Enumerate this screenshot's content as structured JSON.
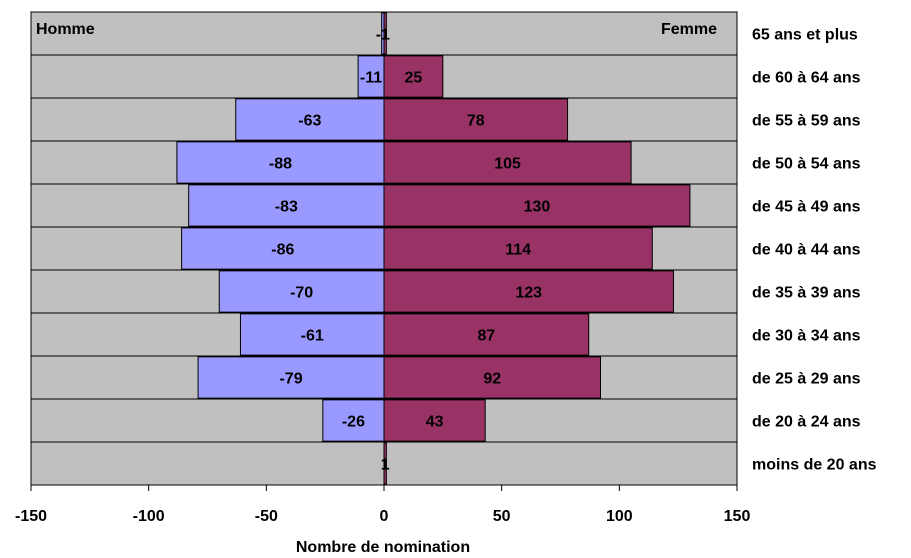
{
  "chart_data": {
    "type": "bar",
    "orientation": "horizontal",
    "stacked_diverging": true,
    "categories": [
      "65 ans et plus",
      "de 60 à 64 ans",
      "de 55 à 59 ans",
      "de 50 à 54 ans",
      "de 45 à 49 ans",
      "de 40 à 44 ans",
      "de 35 à 39 ans",
      "de 30 à 34 ans",
      "de 25 à 29 ans",
      "de 20 à 24 ans",
      "moins de 20 ans"
    ],
    "series": [
      {
        "name": "Homme",
        "color": "#9999ff",
        "values": [
          -1,
          -11,
          -63,
          -88,
          -83,
          -86,
          -70,
          -61,
          -79,
          -26,
          0
        ]
      },
      {
        "name": "Femme",
        "color": "#993366",
        "values": [
          1,
          25,
          78,
          105,
          130,
          114,
          123,
          87,
          92,
          43,
          1
        ]
      }
    ],
    "data_labels": {
      "Homme": [
        "-1",
        "-11",
        "-63",
        "-88",
        "-83",
        "-86",
        "-70",
        "-61",
        "-79",
        "-26",
        ""
      ],
      "Femme": [
        "",
        "25",
        "78",
        "105",
        "130",
        "114",
        "123",
        "87",
        "92",
        "43",
        "1"
      ]
    },
    "xlabel": "Nombre de nomination",
    "ylabel": "",
    "xlim": [
      -150,
      150
    ],
    "xticks": [
      -150,
      -100,
      -50,
      0,
      50,
      100,
      150
    ],
    "xtick_labels": [
      "-150",
      "-100",
      "-50",
      "0",
      "50",
      "100",
      "150"
    ],
    "plot_background": "#c0c0c0",
    "grid": "horizontal",
    "legend_labels": {
      "left": "Homme",
      "right": "Femme"
    }
  }
}
